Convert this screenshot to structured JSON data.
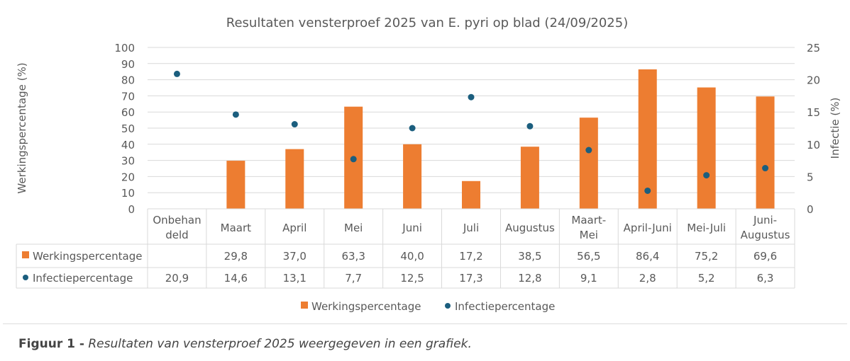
{
  "chart_data": {
    "type": "bar",
    "title": "Resultaten vensterproef 2025 van E. pyri op blad (24/09/2025)",
    "categories": [
      [
        "Onbehan",
        "deld"
      ],
      [
        "Maart"
      ],
      [
        "April"
      ],
      [
        "Mei"
      ],
      [
        "Juni"
      ],
      [
        "Juli"
      ],
      [
        "Augustus"
      ],
      [
        "Maart-",
        "Mei"
      ],
      [
        "April-Juni"
      ],
      [
        "Mei-Juli"
      ],
      [
        "Juni-",
        "Augustus"
      ]
    ],
    "ylabel": "Werkingspercentage (%)",
    "y2label": "Infectie (%)",
    "ylim": [
      0,
      100
    ],
    "y2lim": [
      0,
      25
    ],
    "yticks": [
      0,
      10,
      20,
      30,
      40,
      50,
      60,
      70,
      80,
      90,
      100
    ],
    "y2ticks": [
      0,
      5,
      10,
      15,
      20,
      25
    ],
    "grid": true,
    "legend_position": "bottom",
    "series": [
      {
        "name": "Werkingspercentage",
        "type": "bar",
        "axis": "left",
        "color": "#ED7D31",
        "values": [
          null,
          29.8,
          37.0,
          63.3,
          40.0,
          17.2,
          38.5,
          56.5,
          86.4,
          75.2,
          69.6
        ],
        "labels": [
          "",
          "29,8",
          "37,0",
          "63,3",
          "40,0",
          "17,2",
          "38,5",
          "56,5",
          "86,4",
          "75,2",
          "69,6"
        ]
      },
      {
        "name": "Infectiepercentage",
        "type": "scatter",
        "axis": "right",
        "color": "#1B5E7E",
        "values": [
          20.9,
          14.6,
          13.1,
          7.7,
          12.5,
          17.3,
          12.8,
          9.1,
          2.8,
          5.2,
          6.3
        ],
        "labels": [
          "20,9",
          "14,6",
          "13,1",
          "7,7",
          "12,5",
          "17,3",
          "12,8",
          "9,1",
          "2,8",
          "5,2",
          "6,3"
        ]
      }
    ]
  },
  "caption": {
    "label": "Figuur 1 -",
    "text": "Resultaten van vensterproef 2025 weergegeven in een grafiek."
  }
}
